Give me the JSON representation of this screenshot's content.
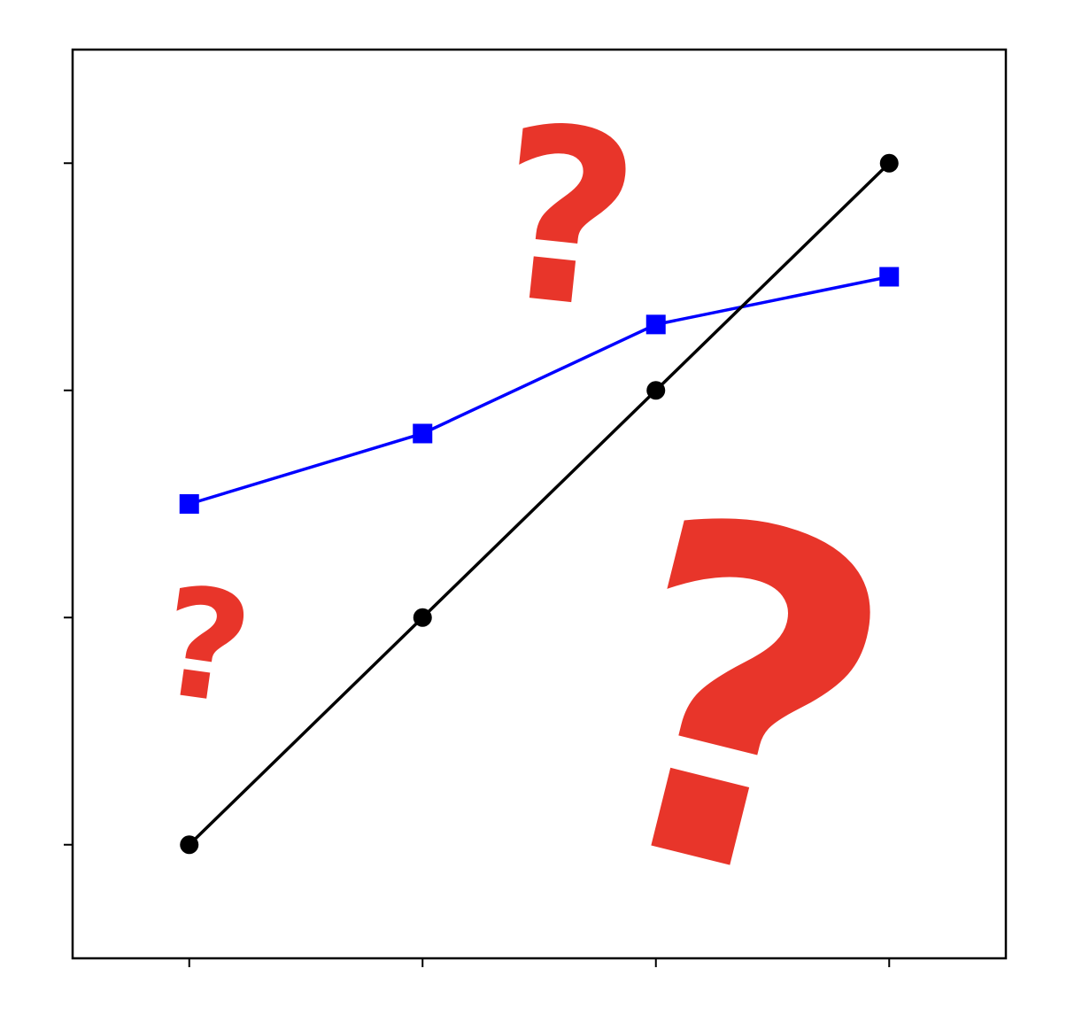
{
  "chart_data": {
    "type": "line",
    "x": [
      1,
      2,
      3,
      4
    ],
    "series": [
      {
        "values": [
          1,
          2,
          3,
          4
        ],
        "color": "#000000",
        "marker": "circle"
      },
      {
        "values": [
          2.5,
          2.81,
          3.29,
          3.5
        ],
        "color": "#0000ff",
        "marker": "square"
      }
    ],
    "xticks": [
      1,
      2,
      3,
      4
    ],
    "yticks": [
      1,
      2,
      3,
      4
    ],
    "tick_labels_shown": false,
    "xlim": [
      0.5,
      4.5
    ],
    "ylim": [
      0.5,
      4.5
    ],
    "grid": false,
    "legend": "none"
  },
  "overlay": {
    "icon": "question-mark-icon",
    "color": "#e8352a",
    "count": 3
  }
}
